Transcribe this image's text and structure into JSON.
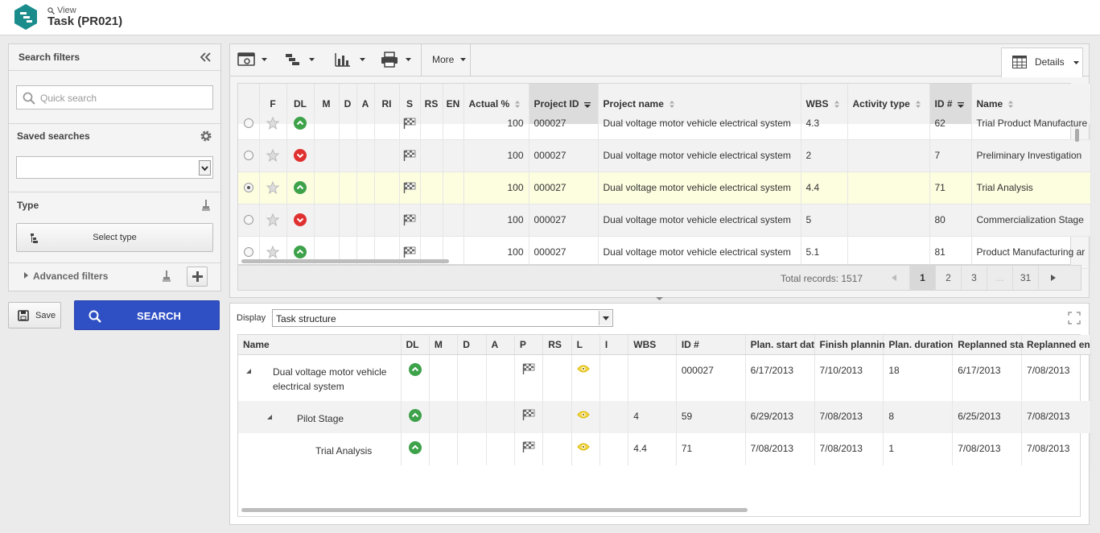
{
  "header": {
    "view_label": "View",
    "title": "Task (PR021)"
  },
  "filters": {
    "title": "Search filters",
    "quick_search_placeholder": "Quick search",
    "saved_searches_label": "Saved searches",
    "type_label": "Type",
    "select_type_label": "Select type",
    "advanced_label": "Advanced filters",
    "save_label": "Save",
    "search_label": "SEARCH"
  },
  "toolbar": {
    "more_label": "More",
    "details_label": "Details"
  },
  "grid": {
    "columns": [
      "F",
      "DL",
      "M",
      "D",
      "A",
      "RI",
      "S",
      "RS",
      "EN",
      "Actual %",
      "Project ID",
      "Project name",
      "WBS",
      "Activity type",
      "ID #",
      "Name"
    ],
    "rows": [
      {
        "dl": "up",
        "actual": "100",
        "project_id": "000027",
        "project_name": "Dual voltage motor vehicle electrical system",
        "wbs": "4.3",
        "activity": "",
        "id": "62",
        "name": "Trial Product Manufacture",
        "selected": false
      },
      {
        "dl": "down",
        "actual": "100",
        "project_id": "000027",
        "project_name": "Dual voltage motor vehicle electrical system",
        "wbs": "2",
        "activity": "",
        "id": "7",
        "name": "Preliminary Investigation",
        "selected": false
      },
      {
        "dl": "up",
        "actual": "100",
        "project_id": "000027",
        "project_name": "Dual voltage motor vehicle electrical system",
        "wbs": "4.4",
        "activity": "",
        "id": "71",
        "name": "Trial Analysis",
        "selected": true
      },
      {
        "dl": "down",
        "actual": "100",
        "project_id": "000027",
        "project_name": "Dual voltage motor vehicle electrical system",
        "wbs": "5",
        "activity": "",
        "id": "80",
        "name": "Commercialization Stage",
        "selected": false
      },
      {
        "dl": "up",
        "actual": "100",
        "project_id": "000027",
        "project_name": "Dual voltage motor vehicle electrical system",
        "wbs": "5.1",
        "activity": "",
        "id": "81",
        "name": "Product Manufacturing ar",
        "selected": false
      }
    ],
    "total_label": "Total records: 1517",
    "pages": [
      "1",
      "2",
      "3",
      "...",
      "31"
    ],
    "current_page": "1"
  },
  "display": {
    "label": "Display",
    "value": "Task structure"
  },
  "tree": {
    "columns": [
      "Name",
      "DL",
      "M",
      "D",
      "A",
      "P",
      "RS",
      "L",
      "I",
      "WBS",
      "ID #",
      "Plan. start dat",
      "Finish plannin",
      "Plan. duration",
      "Replanned sta",
      "Replanned en"
    ],
    "rows": [
      {
        "name_line1": "Dual voltage motor vehicle",
        "name_line2": "electrical system",
        "wbs": "",
        "id": "000027",
        "plan_start": "6/17/2013",
        "finish": "7/10/2013",
        "duration": "18",
        "re_start": "6/17/2013",
        "re_end": "7/08/2013"
      },
      {
        "name_line1": "Pilot Stage",
        "name_line2": "",
        "wbs": "4",
        "id": "59",
        "plan_start": "6/29/2013",
        "finish": "7/08/2013",
        "duration": "8",
        "re_start": "6/25/2013",
        "re_end": "7/08/2013"
      },
      {
        "name_line1": "Trial Analysis",
        "name_line2": "",
        "wbs": "4.4",
        "id": "71",
        "plan_start": "7/08/2013",
        "finish": "7/08/2013",
        "duration": "1",
        "re_start": "7/08/2013",
        "re_end": "7/08/2013"
      }
    ]
  },
  "colors": {
    "accent": "#2f4fc4",
    "logo": "#1a8c8c",
    "dl_up": "#3da24a",
    "dl_down": "#e03030",
    "eye": "#e6c300"
  }
}
